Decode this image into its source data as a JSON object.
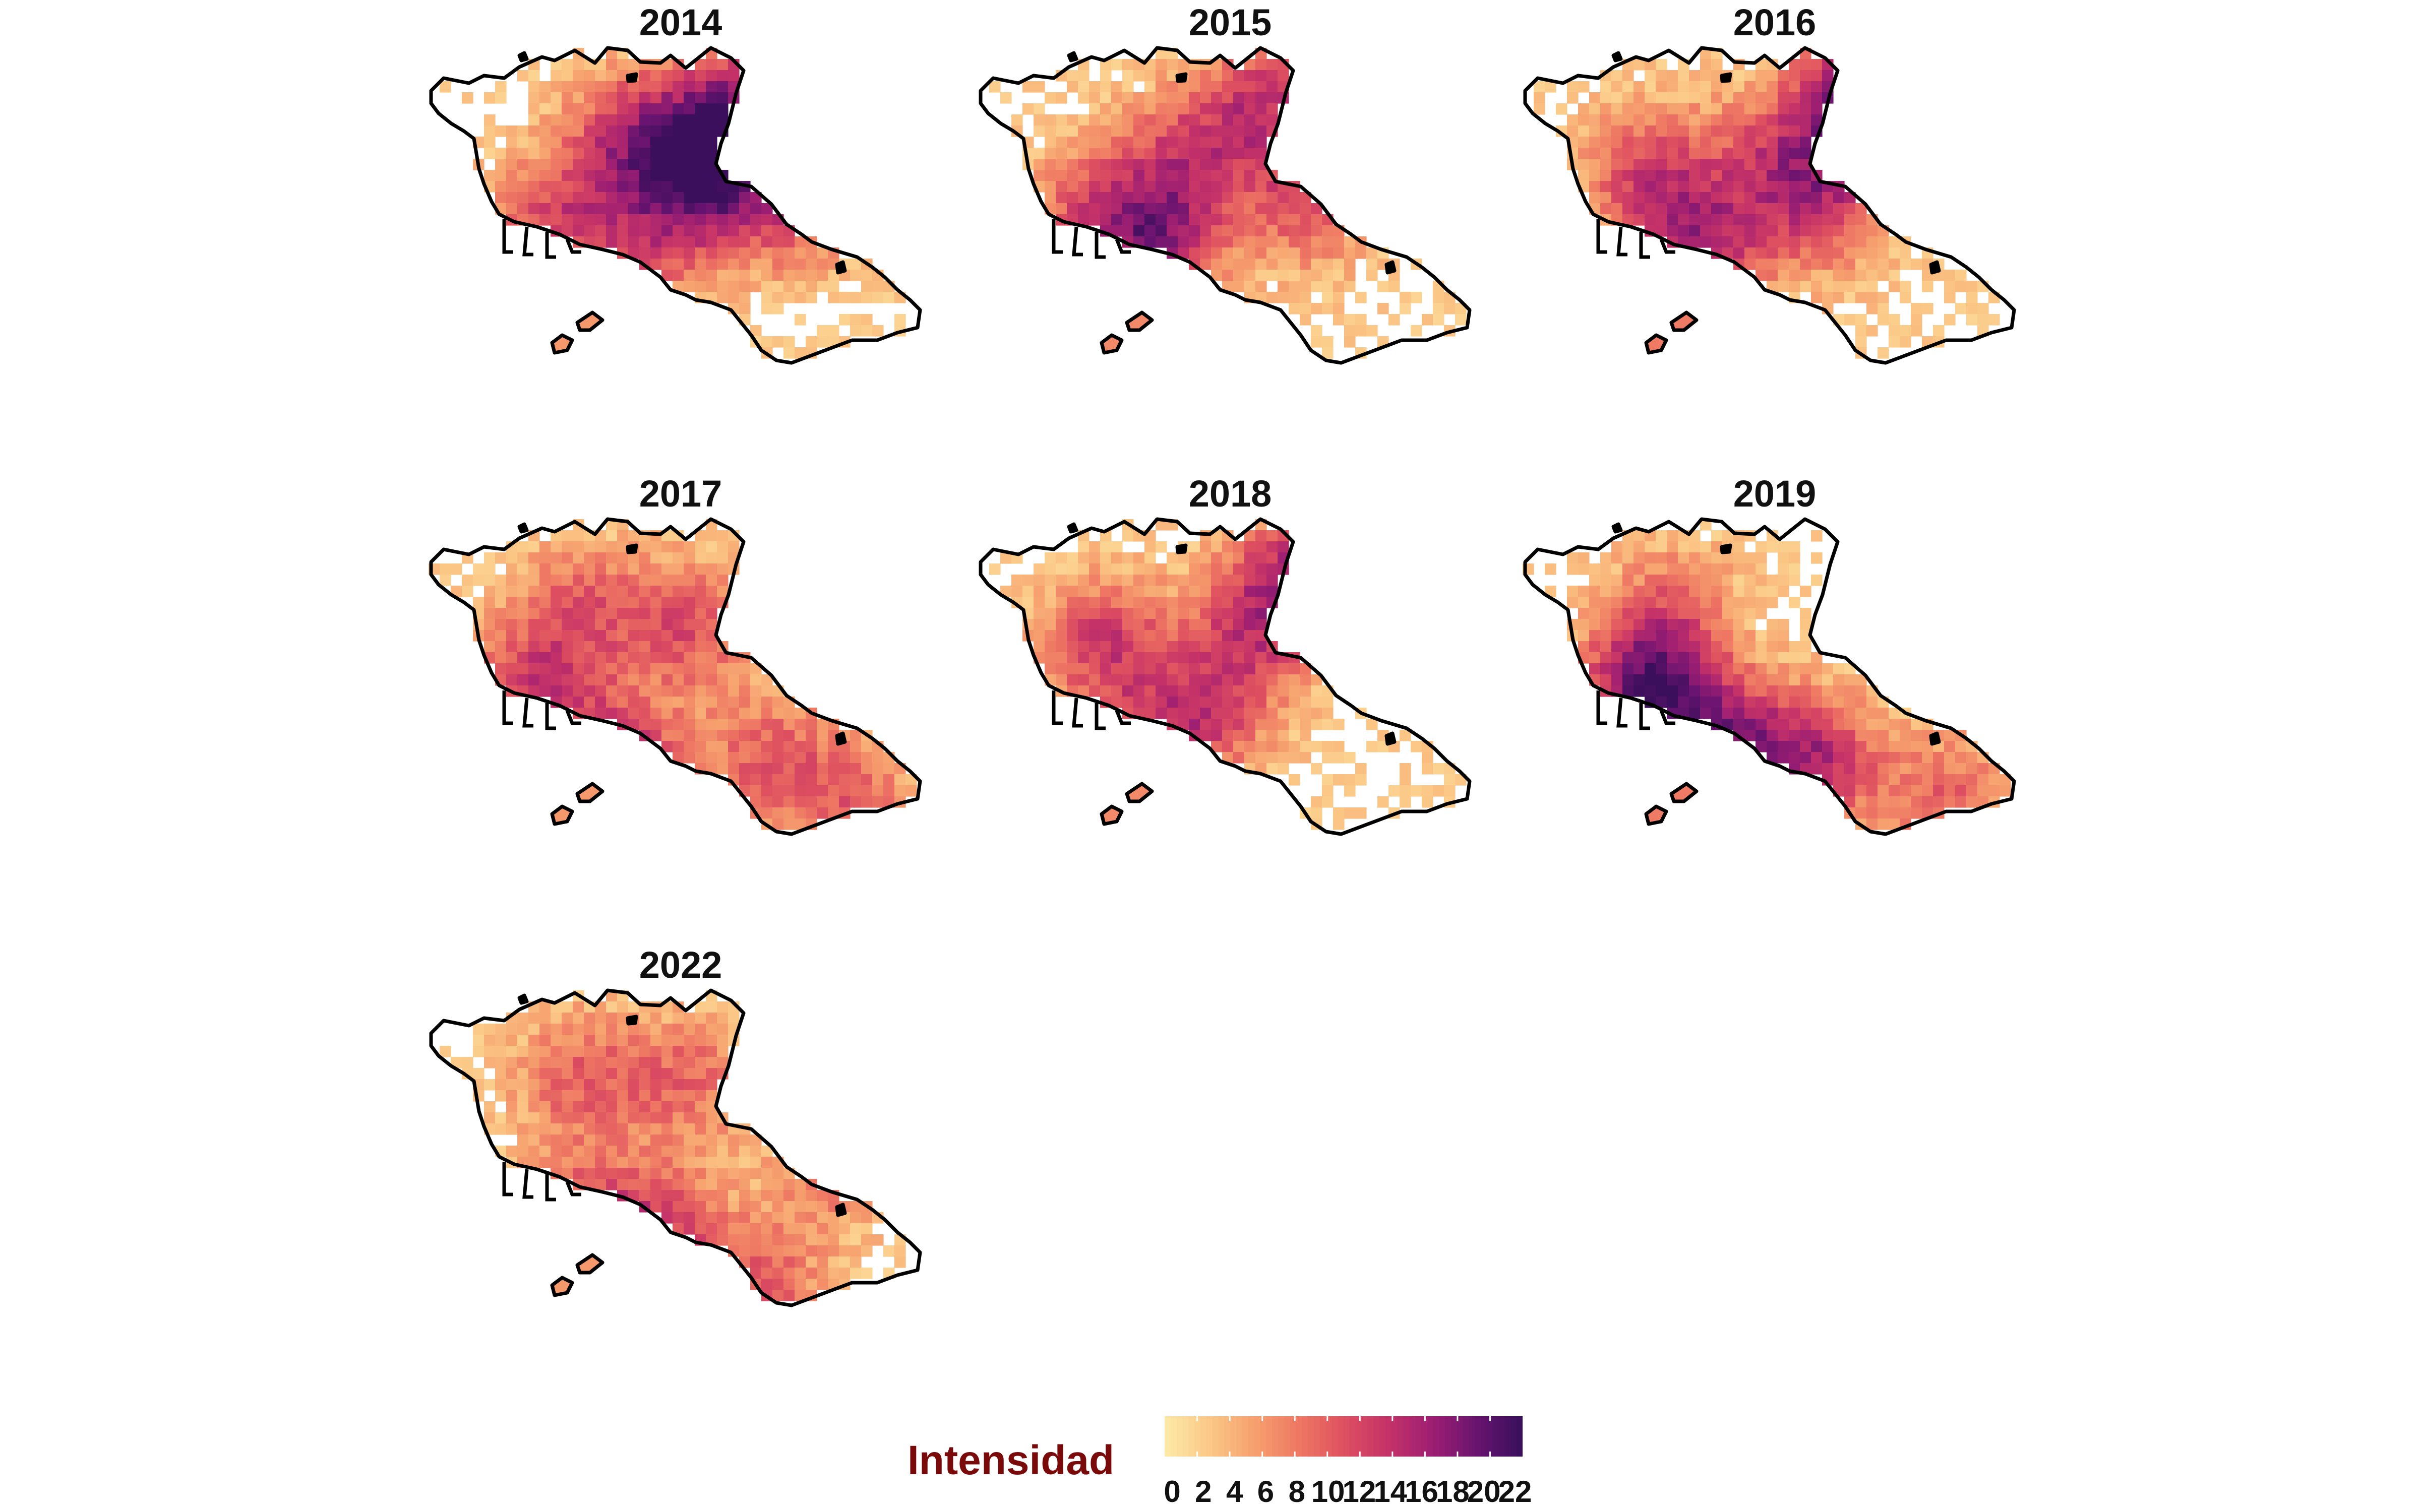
{
  "legend": {
    "title": "Intensidad",
    "ticks": [
      "0",
      "2",
      "4",
      "6",
      "8",
      "10",
      "12",
      "14",
      "16",
      "18",
      "20",
      "22"
    ],
    "range": [
      0,
      22
    ],
    "palette": [
      "#fde8a6",
      "#fbc685",
      "#f69f6e",
      "#ee7763",
      "#de5060",
      "#c53268",
      "#9e1f72",
      "#6a1470",
      "#3b0f5c"
    ]
  },
  "panels": [
    {
      "year": "2014",
      "hotspots": [
        [
          0.55,
          0.34,
          20
        ],
        [
          0.4,
          0.25,
          13
        ],
        [
          0.62,
          0.15,
          14
        ],
        [
          0.25,
          0.5,
          12
        ],
        [
          0.72,
          0.45,
          11
        ],
        [
          0.45,
          0.55,
          9
        ]
      ]
    },
    {
      "year": "2015",
      "hotspots": [
        [
          0.35,
          0.55,
          16
        ],
        [
          0.58,
          0.15,
          13
        ],
        [
          0.42,
          0.3,
          11
        ],
        [
          0.65,
          0.45,
          10
        ],
        [
          0.22,
          0.45,
          9
        ]
      ]
    },
    {
      "year": "2016",
      "hotspots": [
        [
          0.68,
          0.13,
          22
        ],
        [
          0.35,
          0.58,
          16
        ],
        [
          0.25,
          0.35,
          12
        ],
        [
          0.6,
          0.45,
          12
        ],
        [
          0.5,
          0.3,
          10
        ]
      ]
    },
    {
      "year": "2017",
      "hotspots": [
        [
          0.38,
          0.7,
          16
        ],
        [
          0.2,
          0.5,
          13
        ],
        [
          0.3,
          0.25,
          10
        ],
        [
          0.52,
          0.3,
          11
        ],
        [
          0.68,
          0.68,
          10
        ],
        [
          0.85,
          0.82,
          9
        ]
      ]
    },
    {
      "year": "2018",
      "hotspots": [
        [
          0.65,
          0.15,
          14
        ],
        [
          0.25,
          0.35,
          13
        ],
        [
          0.45,
          0.55,
          12
        ],
        [
          0.3,
          0.7,
          11
        ],
        [
          0.55,
          0.3,
          11
        ]
      ]
    },
    {
      "year": "2019",
      "hotspots": [
        [
          0.25,
          0.48,
          21
        ],
        [
          0.4,
          0.65,
          16
        ],
        [
          0.58,
          0.68,
          15
        ],
        [
          0.85,
          0.8,
          10
        ],
        [
          0.3,
          0.25,
          8
        ]
      ]
    },
    {
      "year": "2022",
      "hotspots": [
        [
          0.28,
          0.68,
          13
        ],
        [
          0.45,
          0.68,
          12
        ],
        [
          0.65,
          0.85,
          11
        ],
        [
          0.3,
          0.25,
          10
        ],
        [
          0.52,
          0.25,
          9
        ],
        [
          0.8,
          0.5,
          8
        ]
      ]
    }
  ]
}
